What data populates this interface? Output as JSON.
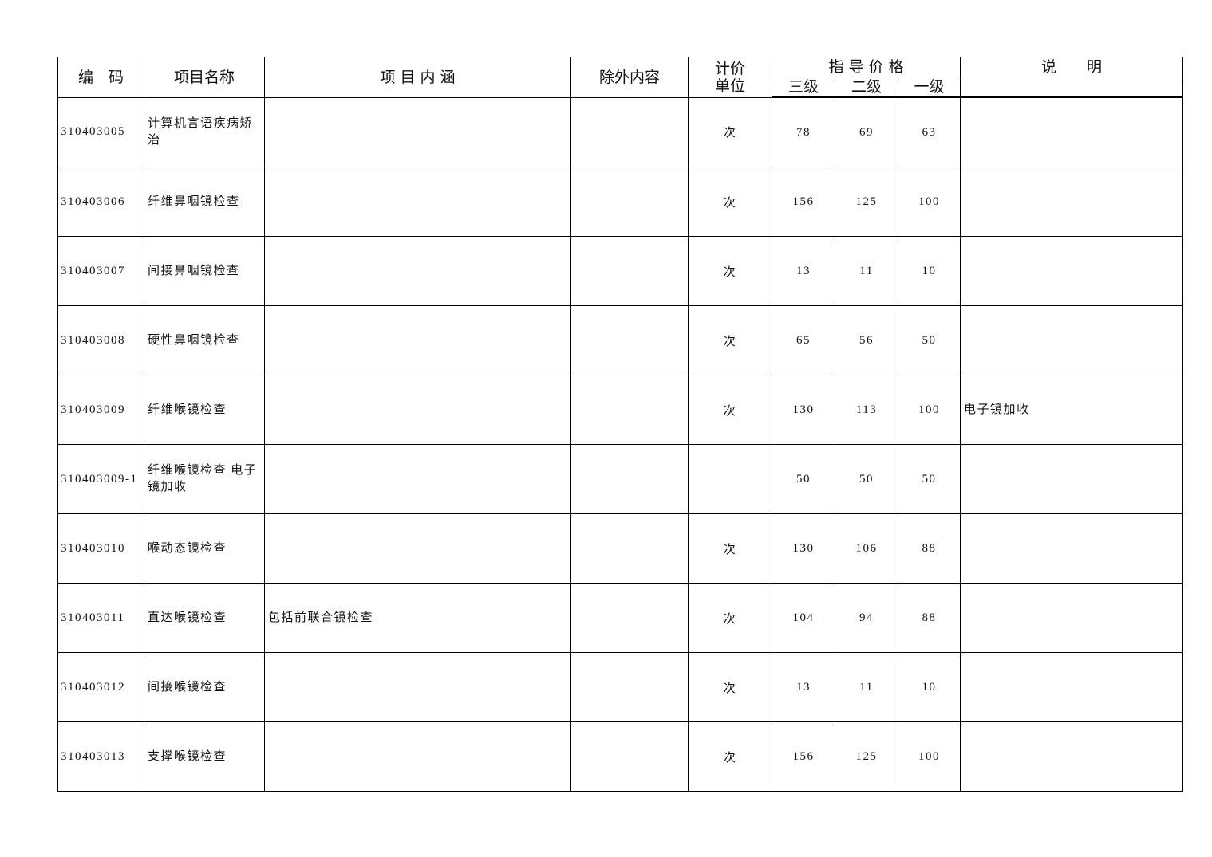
{
  "header": {
    "code": "编　码",
    "name": "项目名称",
    "content": "项 目 内 涵",
    "excluded": "除外内容",
    "unit": "计价单位",
    "unit_line1": "计价",
    "unit_line2": "单位",
    "guide_price": "指 导 价 格",
    "level3": "三级",
    "level2": "二级",
    "level1": "一级",
    "note": "说　　明"
  },
  "rows": [
    {
      "code": "310403005",
      "name": "计算机言语疾病矫治",
      "content": "",
      "excluded": "",
      "unit": "次",
      "level3": "78",
      "level2": "69",
      "level1": "63",
      "note": ""
    },
    {
      "code": "310403006",
      "name": "纤维鼻咽镜检查",
      "content": "",
      "excluded": "",
      "unit": "次",
      "level3": "156",
      "level2": "125",
      "level1": "100",
      "note": ""
    },
    {
      "code": "310403007",
      "name": "间接鼻咽镜检查",
      "content": "",
      "excluded": "",
      "unit": "次",
      "level3": "13",
      "level2": "11",
      "level1": "10",
      "note": ""
    },
    {
      "code": "310403008",
      "name": "硬性鼻咽镜检查",
      "content": "",
      "excluded": "",
      "unit": "次",
      "level3": "65",
      "level2": "56",
      "level1": "50",
      "note": ""
    },
    {
      "code": "310403009",
      "name": "纤维喉镜检查",
      "content": "",
      "excluded": "",
      "unit": "次",
      "level3": "130",
      "level2": "113",
      "level1": "100",
      "note": "电子镜加收"
    },
    {
      "code": "310403009-1",
      "name": "纤维喉镜检查 电子镜加收",
      "content": "",
      "excluded": "",
      "unit": "",
      "level3": "50",
      "level2": "50",
      "level1": "50",
      "note": ""
    },
    {
      "code": "310403010",
      "name": "喉动态镜检查",
      "content": "",
      "excluded": "",
      "unit": "次",
      "level3": "130",
      "level2": "106",
      "level1": "88",
      "note": ""
    },
    {
      "code": "310403011",
      "name": "直达喉镜检查",
      "content": "包括前联合镜检查",
      "excluded": "",
      "unit": "次",
      "level3": "104",
      "level2": "94",
      "level1": "88",
      "note": ""
    },
    {
      "code": "310403012",
      "name": "间接喉镜检查",
      "content": "",
      "excluded": "",
      "unit": "次",
      "level3": "13",
      "level2": "11",
      "level1": "10",
      "note": ""
    },
    {
      "code": "310403013",
      "name": "支撑喉镜检查",
      "content": "",
      "excluded": "",
      "unit": "次",
      "level3": "156",
      "level2": "125",
      "level1": "100",
      "note": ""
    }
  ]
}
